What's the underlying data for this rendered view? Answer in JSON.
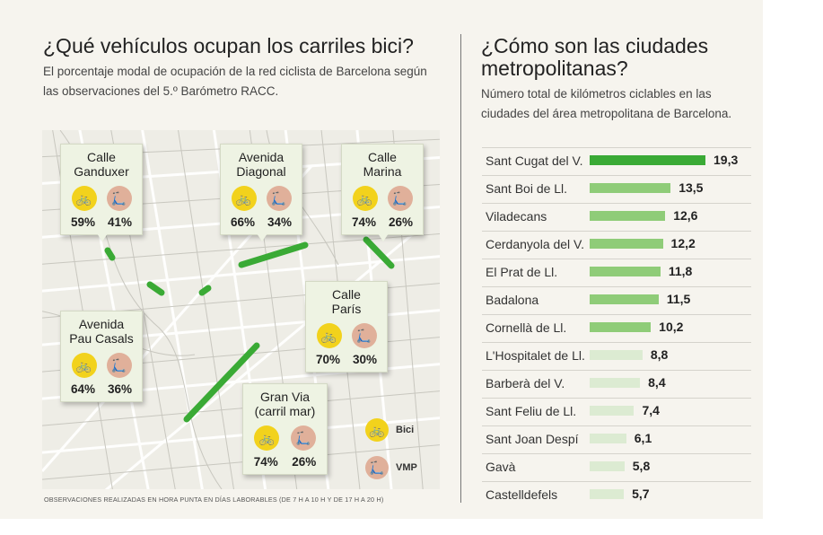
{
  "left": {
    "title": "¿Qué vehículos ocupan los carriles bici?",
    "subtitle_lines": [
      "El porcentaje modal de ocupación de la red ciclista de Barcelona según",
      "las observaciones del 5.º Barómetro RACC."
    ],
    "locations": [
      {
        "name": "Calle\nGanduxer",
        "bici": "59%",
        "vmp": "41%"
      },
      {
        "name": "Avenida\nDiagonal",
        "bici": "66%",
        "vmp": "34%"
      },
      {
        "name": "Calle\nMarina",
        "bici": "74%",
        "vmp": "26%"
      },
      {
        "name": "Calle\nParís",
        "bici": "70%",
        "vmp": "30%"
      },
      {
        "name": "Avenida\nPau Casals",
        "bici": "64%",
        "vmp": "36%"
      },
      {
        "name": "Gran Via\n(carril mar)",
        "bici": "74%",
        "vmp": "26%"
      }
    ],
    "legend": {
      "bici": "Bici",
      "vmp": "VMP"
    },
    "footnote": "OBSERVACIONES REALIZADAS EN HORA PUNTA EN DÍAS LABORABLES (DE 7 H A 10 H Y DE 17 H A 20 H)",
    "icons": {
      "bici": "bicycle-icon",
      "vmp": "scooter-icon"
    },
    "colors": {
      "route": "#3aaa35",
      "bici": "#f2d21c",
      "vmp": "#e0b09a"
    }
  },
  "right": {
    "title_lines": [
      "¿Cómo son las ciudades",
      "metropolitanas?"
    ],
    "subtitle_lines": [
      "Número total de kilómetros ciclables en las",
      "ciudades del área metropolitana de Barcelona."
    ]
  },
  "chart_data": {
    "type": "bar",
    "orientation": "horizontal",
    "categories": [
      "Sant Cugat del V.",
      "Sant Boi de Ll.",
      "Viladecans",
      "Cerdanyola del V.",
      "El Prat de Ll.",
      "Badalona",
      "Cornellà de Ll.",
      "L'Hospitalet de Ll.",
      "Barberà del V.",
      "Sant Feliu de Ll.",
      "Sant Joan Despí",
      "Gavà",
      "Castelldefels"
    ],
    "values": [
      19.3,
      13.5,
      12.6,
      12.2,
      11.8,
      11.5,
      10.2,
      8.8,
      8.4,
      7.4,
      6.1,
      5.8,
      5.7
    ],
    "value_labels": [
      "19,3",
      "13,5",
      "12,6",
      "12,2",
      "11,8",
      "11,5",
      "10,2",
      "8,8",
      "8,4",
      "7,4",
      "6,1",
      "5,8",
      "5,7"
    ],
    "bar_colors": [
      "#3aaa35",
      "#8fcc78",
      "#8fcc78",
      "#8fcc78",
      "#8fcc78",
      "#8fcc78",
      "#8fcc78",
      "#dcebd2",
      "#dcebd2",
      "#dcebd2",
      "#dcebd2",
      "#dcebd2",
      "#dcebd2"
    ],
    "xlim": [
      0,
      19.3
    ]
  }
}
